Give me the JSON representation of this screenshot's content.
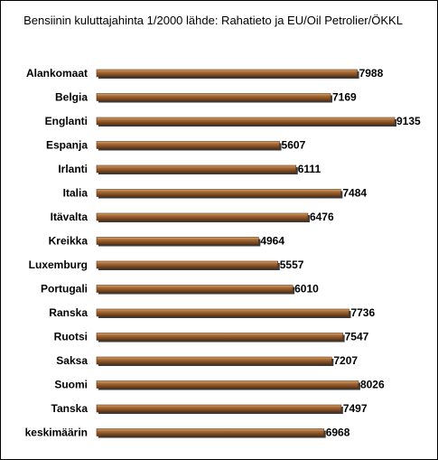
{
  "chart_data": {
    "type": "bar",
    "orientation": "horizontal",
    "title": "Bensiinin kuluttajahinta 1/2000 lähde: Rahatieto ja EU/Oil Petrolier/ÖKKL",
    "xlabel": "",
    "ylabel": "",
    "grid": false,
    "legend": "none",
    "xlim": [
      0,
      10000
    ],
    "categories": [
      "Alankomaat",
      "Belgia",
      "Englanti",
      "Espanja",
      "Irlanti",
      "Italia",
      "Itävalta",
      "Kreikka",
      "Luxemburg",
      "Portugali",
      "Ranska",
      "Ruotsi",
      "Saksa",
      "Suomi",
      "Tanska",
      "keskimäärin"
    ],
    "values": [
      7988,
      7169,
      9135,
      5607,
      6111,
      7484,
      6476,
      4964,
      5557,
      6010,
      7736,
      7547,
      7207,
      8026,
      7497,
      6968
    ],
    "colors": {
      "bar_light": "#d9a46b",
      "bar_mid": "#a86a36",
      "bar_dark": "#5c3415",
      "shadow": "#3a3a3a"
    }
  }
}
